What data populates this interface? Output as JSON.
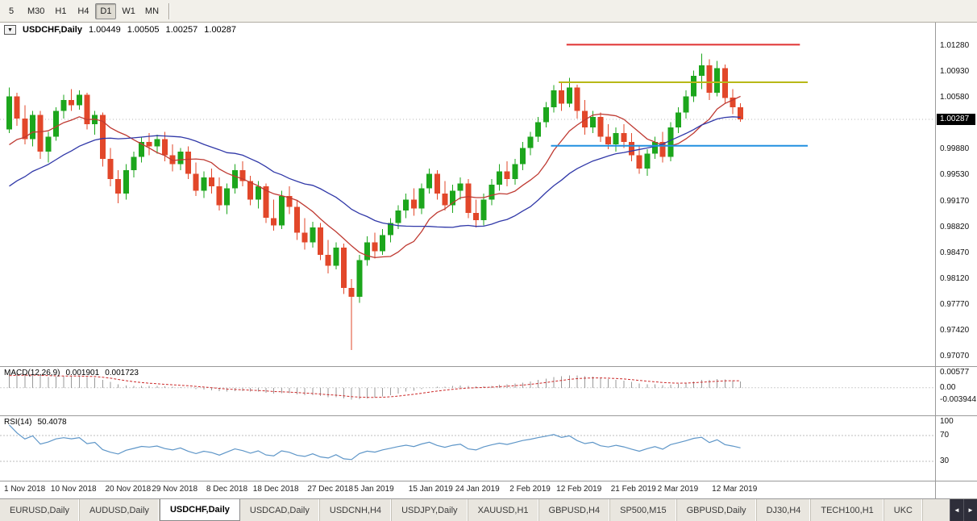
{
  "toolbar": {
    "timeframes": [
      {
        "label": "5",
        "active": false
      },
      {
        "label": "M30",
        "active": false
      },
      {
        "label": "H1",
        "active": false
      },
      {
        "label": "H4",
        "active": false
      },
      {
        "label": "D1",
        "active": true
      },
      {
        "label": "W1",
        "active": false
      },
      {
        "label": "MN",
        "active": false
      }
    ]
  },
  "chart_header": {
    "symbol": "USDCHF,Daily",
    "open": "1.00449",
    "high": "1.00505",
    "low": "1.00257",
    "close": "1.00287"
  },
  "indicators": {
    "macd": {
      "name": "MACD(12,26,9)",
      "value_main": "0.001901",
      "value_signal": "0.001723"
    },
    "rsi": {
      "name": "RSI(14)",
      "value": "50.4078"
    }
  },
  "icons": {
    "symbol_dropdown": "▼",
    "tabs_scroll_left": "◄",
    "tabs_scroll_right": "►"
  },
  "tabs": {
    "items": [
      {
        "label": "EURUSD,Daily",
        "active": false
      },
      {
        "label": "AUDUSD,Daily",
        "active": false
      },
      {
        "label": "USDCHF,Daily",
        "active": true
      },
      {
        "label": "USDCAD,Daily",
        "active": false
      },
      {
        "label": "USDCNH,H4",
        "active": false
      },
      {
        "label": "USDJPY,Daily",
        "active": false
      },
      {
        "label": "XAUUSD,H1",
        "active": false
      },
      {
        "label": "GBPUSD,H4",
        "active": false
      },
      {
        "label": "SP500,M15",
        "active": false
      },
      {
        "label": "GBPUSD,Daily",
        "active": false
      },
      {
        "label": "DJ30,H4",
        "active": false
      },
      {
        "label": "TECH100,H1",
        "active": false
      },
      {
        "label": "UKC",
        "active": false
      }
    ]
  },
  "chart_data": {
    "type": "candlestick",
    "title": "USDCHF,Daily",
    "candle_colors": {
      "up": "#1ca61c",
      "down": "#e2472a"
    },
    "price_axis": {
      "visible_max": 1.016,
      "visible_min": 0.9694,
      "current_price": 1.00287,
      "current_price_label": "1.00287",
      "ticks": [
        {
          "v": 1.0128,
          "label": "1.01280"
        },
        {
          "v": 1.0093,
          "label": "1.00930"
        },
        {
          "v": 1.0058,
          "label": "1.00580"
        },
        {
          "v": 0.9988,
          "label": "0.99880"
        },
        {
          "v": 0.9953,
          "label": "0.99530"
        },
        {
          "v": 0.9917,
          "label": "0.99170"
        },
        {
          "v": 0.9882,
          "label": "0.98820"
        },
        {
          "v": 0.9847,
          "label": "0.98470"
        },
        {
          "v": 0.9812,
          "label": "0.98120"
        },
        {
          "v": 0.9777,
          "label": "0.97770"
        },
        {
          "v": 0.9742,
          "label": "0.97420"
        },
        {
          "v": 0.9707,
          "label": "0.97070"
        }
      ]
    },
    "time_axis": {
      "ticks": [
        {
          "i": 0,
          "label": "1 Nov 2018"
        },
        {
          "i": 6,
          "label": "10 Nov 2018"
        },
        {
          "i": 13,
          "label": "20 Nov 2018"
        },
        {
          "i": 19,
          "label": "29 Nov 2018"
        },
        {
          "i": 26,
          "label": "8 Dec 2018"
        },
        {
          "i": 32,
          "label": "18 Dec 2018"
        },
        {
          "i": 39,
          "label": "27 Dec 2018"
        },
        {
          "i": 45,
          "label": "5 Jan 2019"
        },
        {
          "i": 52,
          "label": "15 Jan 2019"
        },
        {
          "i": 58,
          "label": "24 Jan 2019"
        },
        {
          "i": 65,
          "label": "2 Feb 2019"
        },
        {
          "i": 71,
          "label": "12 Feb 2019"
        },
        {
          "i": 78,
          "label": "21 Feb 2019"
        },
        {
          "i": 84,
          "label": "2 Mar 2019"
        },
        {
          "i": 91,
          "label": "12 Mar 2019"
        }
      ]
    },
    "moving_averages": [
      {
        "name": "fast-ma",
        "period": 10,
        "color": "#bf3a32"
      },
      {
        "name": "slow-ma",
        "period": 25,
        "color": "#3038a8"
      }
    ],
    "hlines": [
      {
        "name": "resistance-line-upper",
        "price": 1.013,
        "start_index": 72,
        "future_bars": 8,
        "color": "#e03232",
        "width": 2
      },
      {
        "name": "resistance-line-mid",
        "price": 1.0079,
        "start_index": 71,
        "future_bars": 9,
        "color": "#b8b818",
        "width": 2
      },
      {
        "name": "support-line",
        "price": 0.9993,
        "start_index": 70,
        "future_bars": 9,
        "color": "#2090e0",
        "width": 2
      }
    ],
    "macd": {
      "fast": 12,
      "slow": 26,
      "signal": 9,
      "panel_max": 0.0068,
      "panel_min": -0.009,
      "ticks": [
        {
          "v": 0.00577,
          "label": "0.00577"
        },
        {
          "v": 0,
          "label": "0.00"
        },
        {
          "v": -0.003944,
          "label": "-0.003944"
        }
      ],
      "histogram_color": "#9a9a9a",
      "signal_color": "#cc2929"
    },
    "rsi": {
      "period": 14,
      "color": "#5e96c8",
      "levels": [
        70,
        30
      ],
      "ticks": [
        {
          "v": 100,
          "label": "100"
        },
        {
          "v": 70,
          "label": "70"
        },
        {
          "v": 30,
          "label": "30"
        }
      ]
    },
    "lead_in_closes": [
      0.98,
      0.9815,
      0.9808,
      0.9825,
      0.984,
      0.9832,
      0.985,
      0.9862,
      0.9855,
      0.987,
      0.9885,
      0.9878,
      0.9895,
      0.991,
      0.9902,
      0.9918,
      0.993,
      0.9922,
      0.9938,
      0.995,
      0.9945,
      0.996,
      0.9972,
      0.9965,
      0.998,
      0.9992,
      0.9985,
      1.0,
      1.0012,
      1.0018
    ],
    "candles": [
      [
        1.0015,
        1.0072,
        1.001,
        1.006
      ],
      [
        1.006,
        1.0065,
        1.002,
        1.003
      ],
      [
        1.003,
        1.0048,
        0.9995,
        1.0002
      ],
      [
        1.0002,
        1.004,
        0.9992,
        1.0035
      ],
      [
        1.0035,
        1.004,
        0.9975,
        0.9985
      ],
      [
        0.9985,
        1.0012,
        0.997,
        1.0005
      ],
      [
        1.0005,
        1.0045,
        1.0,
        1.004
      ],
      [
        1.004,
        1.0062,
        1.003,
        1.0055
      ],
      [
        1.0055,
        1.007,
        1.004,
        1.0048
      ],
      [
        1.0048,
        1.0068,
        1.0042,
        1.0062
      ],
      [
        1.0062,
        1.0065,
        1.0015,
        1.0022
      ],
      [
        1.0022,
        1.004,
        1.0008,
        1.0035
      ],
      [
        1.0035,
        1.0038,
        0.9965,
        0.9975
      ],
      [
        0.9975,
        0.999,
        0.9938,
        0.9948
      ],
      [
        0.9948,
        0.996,
        0.9915,
        0.9928
      ],
      [
        0.9928,
        0.9968,
        0.992,
        0.996
      ],
      [
        0.996,
        0.9985,
        0.995,
        0.9978
      ],
      [
        0.9978,
        1.0005,
        0.997,
        0.9998
      ],
      [
        0.9998,
        1.001,
        0.998,
        0.9992
      ],
      [
        0.9992,
        1.0008,
        0.9982,
        1.0002
      ],
      [
        1.0002,
        1.0012,
        0.9972,
        0.998
      ],
      [
        0.998,
        0.9995,
        0.9958,
        0.9968
      ],
      [
        0.9968,
        0.999,
        0.996,
        0.9985
      ],
      [
        0.9985,
        0.9992,
        0.9948,
        0.9955
      ],
      [
        0.9955,
        0.997,
        0.9925,
        0.9932
      ],
      [
        0.9932,
        0.9958,
        0.9922,
        0.995
      ],
      [
        0.995,
        0.9962,
        0.9928,
        0.9938
      ],
      [
        0.9938,
        0.995,
        0.9905,
        0.9912
      ],
      [
        0.9912,
        0.9942,
        0.99,
        0.9935
      ],
      [
        0.9935,
        0.9968,
        0.9928,
        0.996
      ],
      [
        0.996,
        0.9972,
        0.9938,
        0.9945
      ],
      [
        0.9945,
        0.9952,
        0.9912,
        0.992
      ],
      [
        0.992,
        0.9945,
        0.9908,
        0.9938
      ],
      [
        0.9938,
        0.9942,
        0.9888,
        0.9895
      ],
      [
        0.9895,
        0.992,
        0.9878,
        0.9885
      ],
      [
        0.9885,
        0.9932,
        0.988,
        0.9925
      ],
      [
        0.9925,
        0.9938,
        0.99,
        0.991
      ],
      [
        0.991,
        0.9918,
        0.9865,
        0.9875
      ],
      [
        0.9875,
        0.9895,
        0.9852,
        0.9862
      ],
      [
        0.9862,
        0.989,
        0.9855,
        0.9882
      ],
      [
        0.9882,
        0.9888,
        0.9838,
        0.9845
      ],
      [
        0.9845,
        0.9865,
        0.982,
        0.983
      ],
      [
        0.983,
        0.9862,
        0.9825,
        0.9855
      ],
      [
        0.9855,
        0.986,
        0.9792,
        0.98
      ],
      [
        0.98,
        0.9812,
        0.9716,
        0.9788
      ],
      [
        0.9788,
        0.9845,
        0.978,
        0.9838
      ],
      [
        0.9838,
        0.987,
        0.983,
        0.9862
      ],
      [
        0.9862,
        0.9875,
        0.984,
        0.985
      ],
      [
        0.985,
        0.988,
        0.9845,
        0.9872
      ],
      [
        0.9872,
        0.9895,
        0.9862,
        0.9888
      ],
      [
        0.9888,
        0.9912,
        0.988,
        0.9905
      ],
      [
        0.9905,
        0.9928,
        0.9895,
        0.992
      ],
      [
        0.992,
        0.9935,
        0.9898,
        0.9908
      ],
      [
        0.9908,
        0.9942,
        0.99,
        0.9935
      ],
      [
        0.9935,
        0.9962,
        0.9928,
        0.9955
      ],
      [
        0.9955,
        0.996,
        0.992,
        0.9928
      ],
      [
        0.9928,
        0.9945,
        0.9905,
        0.9912
      ],
      [
        0.9912,
        0.994,
        0.9902,
        0.9932
      ],
      [
        0.9932,
        0.995,
        0.992,
        0.9942
      ],
      [
        0.9942,
        0.9948,
        0.9895,
        0.9902
      ],
      [
        0.9902,
        0.992,
        0.9882,
        0.9892
      ],
      [
        0.9892,
        0.9928,
        0.9885,
        0.992
      ],
      [
        0.992,
        0.9948,
        0.9912,
        0.994
      ],
      [
        0.994,
        0.9968,
        0.9932,
        0.9958
      ],
      [
        0.9958,
        0.9972,
        0.9938,
        0.9948
      ],
      [
        0.9948,
        0.9975,
        0.994,
        0.9968
      ],
      [
        0.9968,
        0.9998,
        0.996,
        0.999
      ],
      [
        0.999,
        1.0012,
        0.998,
        1.0005
      ],
      [
        1.0005,
        1.0032,
        0.9998,
        1.0025
      ],
      [
        1.0025,
        1.0052,
        1.0018,
        1.0045
      ],
      [
        1.0045,
        1.0075,
        1.0038,
        1.0068
      ],
      [
        1.0068,
        1.0078,
        1.004,
        1.005
      ],
      [
        1.005,
        1.0085,
        1.0045,
        1.0072
      ],
      [
        1.0072,
        1.0076,
        1.003,
        1.004
      ],
      [
        1.004,
        1.0055,
        1.0008,
        1.0018
      ],
      [
        1.0018,
        1.004,
        1.001,
        1.0032
      ],
      [
        1.0032,
        1.0038,
        0.9998,
        1.0005
      ],
      [
        1.0005,
        1.0022,
        0.9988,
        0.9995
      ],
      [
        0.9995,
        1.0018,
        0.9985,
        1.001
      ],
      [
        1.001,
        1.0022,
        0.999,
        0.9998
      ],
      [
        0.9998,
        1.001,
        0.9972,
        0.998
      ],
      [
        0.998,
        0.9992,
        0.9955,
        0.9962
      ],
      [
        0.9962,
        0.9988,
        0.9952,
        0.9982
      ],
      [
        0.9982,
        1.0005,
        0.9975,
        0.9998
      ],
      [
        0.9998,
        1.0012,
        0.997,
        0.9978
      ],
      [
        0.9978,
        1.0025,
        0.9972,
        1.0018
      ],
      [
        1.0018,
        1.0045,
        1.001,
        1.0038
      ],
      [
        1.0038,
        1.0068,
        1.003,
        1.006
      ],
      [
        1.006,
        1.0095,
        1.0052,
        1.0088
      ],
      [
        1.0088,
        1.0118,
        1.007,
        1.0102
      ],
      [
        1.0102,
        1.011,
        1.0055,
        1.0065
      ],
      [
        1.0065,
        1.0108,
        1.006,
        1.0098
      ],
      [
        1.0098,
        1.0103,
        1.005,
        1.0058
      ],
      [
        1.0058,
        1.007,
        1.0036,
        1.0045
      ],
      [
        1.00449,
        1.00505,
        1.00257,
        1.00287
      ]
    ]
  }
}
